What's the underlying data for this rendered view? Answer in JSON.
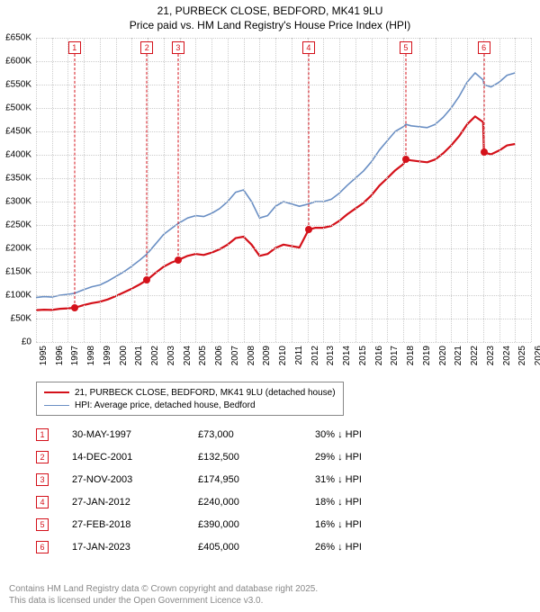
{
  "title": {
    "line1": "21, PURBECK CLOSE, BEDFORD, MK41 9LU",
    "line2": "Price paid vs. HM Land Registry's House Price Index (HPI)"
  },
  "chart": {
    "type": "line",
    "background_color": "#ffffff",
    "grid_color": "#cccccc",
    "axis_color": "#666666",
    "xlim": [
      1995,
      2026
    ],
    "ylim": [
      0,
      650000
    ],
    "ytick_step": 50000,
    "yticks_labels": [
      "£0",
      "£50K",
      "£100K",
      "£150K",
      "£200K",
      "£250K",
      "£300K",
      "£350K",
      "£400K",
      "£450K",
      "£500K",
      "£550K",
      "£600K",
      "£650K"
    ],
    "xticks": [
      1995,
      1996,
      1997,
      1998,
      1999,
      2000,
      2001,
      2002,
      2003,
      2004,
      2005,
      2006,
      2007,
      2008,
      2009,
      2010,
      2011,
      2012,
      2013,
      2014,
      2015,
      2016,
      2017,
      2018,
      2019,
      2020,
      2021,
      2022,
      2023,
      2024,
      2025,
      2026
    ],
    "label_fontsize": 10,
    "series": [
      {
        "id": "hpi",
        "color": "#6a8fc4",
        "width": 1.6,
        "label": "HPI: Average price, detached house, Bedford",
        "points": [
          [
            1995.0,
            95000
          ],
          [
            1995.5,
            97000
          ],
          [
            1996.0,
            96000
          ],
          [
            1996.5,
            100000
          ],
          [
            1997.0,
            102000
          ],
          [
            1997.41,
            104000
          ],
          [
            1998.0,
            112000
          ],
          [
            1998.5,
            118000
          ],
          [
            1999.0,
            122000
          ],
          [
            1999.5,
            130000
          ],
          [
            2000.0,
            140000
          ],
          [
            2000.5,
            150000
          ],
          [
            2001.0,
            162000
          ],
          [
            2001.5,
            175000
          ],
          [
            2001.95,
            188000
          ],
          [
            2002.5,
            210000
          ],
          [
            2003.0,
            230000
          ],
          [
            2003.5,
            243000
          ],
          [
            2003.9,
            253000
          ],
          [
            2004.5,
            265000
          ],
          [
            2005.0,
            270000
          ],
          [
            2005.5,
            268000
          ],
          [
            2006.0,
            275000
          ],
          [
            2006.5,
            285000
          ],
          [
            2007.0,
            300000
          ],
          [
            2007.5,
            320000
          ],
          [
            2008.0,
            325000
          ],
          [
            2008.5,
            300000
          ],
          [
            2009.0,
            265000
          ],
          [
            2009.5,
            270000
          ],
          [
            2010.0,
            290000
          ],
          [
            2010.5,
            300000
          ],
          [
            2011.0,
            295000
          ],
          [
            2011.5,
            290000
          ],
          [
            2012.07,
            295000
          ],
          [
            2012.5,
            300000
          ],
          [
            2013.0,
            300000
          ],
          [
            2013.5,
            305000
          ],
          [
            2014.0,
            318000
          ],
          [
            2014.5,
            335000
          ],
          [
            2015.0,
            350000
          ],
          [
            2015.5,
            365000
          ],
          [
            2016.0,
            385000
          ],
          [
            2016.5,
            410000
          ],
          [
            2017.0,
            430000
          ],
          [
            2017.5,
            450000
          ],
          [
            2018.0,
            460000
          ],
          [
            2018.16,
            465000
          ],
          [
            2018.5,
            462000
          ],
          [
            2019.0,
            460000
          ],
          [
            2019.5,
            458000
          ],
          [
            2020.0,
            465000
          ],
          [
            2020.5,
            480000
          ],
          [
            2021.0,
            500000
          ],
          [
            2021.5,
            525000
          ],
          [
            2022.0,
            555000
          ],
          [
            2022.5,
            575000
          ],
          [
            2023.0,
            560000
          ],
          [
            2023.05,
            550000
          ],
          [
            2023.5,
            545000
          ],
          [
            2024.0,
            555000
          ],
          [
            2024.5,
            570000
          ],
          [
            2025.0,
            575000
          ]
        ]
      },
      {
        "id": "price_paid",
        "color": "#d4111a",
        "width": 2.2,
        "label": "21, PURBECK CLOSE, BEDFORD, MK41 9LU (detached house)",
        "points": [
          [
            1995.0,
            68000
          ],
          [
            1995.5,
            69000
          ],
          [
            1996.0,
            68500
          ],
          [
            1996.5,
            71000
          ],
          [
            1997.0,
            72000
          ],
          [
            1997.41,
            73000
          ],
          [
            1998.0,
            79000
          ],
          [
            1998.5,
            83000
          ],
          [
            1999.0,
            86000
          ],
          [
            1999.5,
            91000
          ],
          [
            2000.0,
            98000
          ],
          [
            2000.5,
            106000
          ],
          [
            2001.0,
            114000
          ],
          [
            2001.5,
            123000
          ],
          [
            2001.95,
            132500
          ],
          [
            2002.5,
            148000
          ],
          [
            2003.0,
            161000
          ],
          [
            2003.5,
            170000
          ],
          [
            2003.9,
            174950
          ],
          [
            2004.5,
            184000
          ],
          [
            2005.0,
            188000
          ],
          [
            2005.5,
            186000
          ],
          [
            2006.0,
            191000
          ],
          [
            2006.5,
            198000
          ],
          [
            2007.0,
            208000
          ],
          [
            2007.5,
            222000
          ],
          [
            2008.0,
            225000
          ],
          [
            2008.5,
            208000
          ],
          [
            2009.0,
            184000
          ],
          [
            2009.5,
            188000
          ],
          [
            2010.0,
            201000
          ],
          [
            2010.5,
            208000
          ],
          [
            2011.0,
            205000
          ],
          [
            2011.5,
            202000
          ],
          [
            2012.07,
            240000
          ],
          [
            2012.5,
            244000
          ],
          [
            2013.0,
            244000
          ],
          [
            2013.5,
            248000
          ],
          [
            2014.0,
            259000
          ],
          [
            2014.5,
            273000
          ],
          [
            2015.0,
            285000
          ],
          [
            2015.5,
            297000
          ],
          [
            2016.0,
            313000
          ],
          [
            2016.5,
            334000
          ],
          [
            2017.0,
            350000
          ],
          [
            2017.5,
            367000
          ],
          [
            2018.0,
            380000
          ],
          [
            2018.16,
            390000
          ],
          [
            2018.5,
            388000
          ],
          [
            2019.0,
            386000
          ],
          [
            2019.5,
            384000
          ],
          [
            2020.0,
            390000
          ],
          [
            2020.5,
            403000
          ],
          [
            2021.0,
            420000
          ],
          [
            2021.5,
            440000
          ],
          [
            2022.0,
            465000
          ],
          [
            2022.5,
            482000
          ],
          [
            2023.0,
            470000
          ],
          [
            2023.05,
            405000
          ],
          [
            2023.5,
            401000
          ],
          [
            2024.0,
            409000
          ],
          [
            2024.5,
            420000
          ],
          [
            2025.0,
            423000
          ]
        ]
      }
    ],
    "markers": {
      "color": "#d4111a",
      "box_top_offset": 4,
      "items": [
        {
          "n": "1",
          "x": 1997.41,
          "y": 73000
        },
        {
          "n": "2",
          "x": 2001.95,
          "y": 132500
        },
        {
          "n": "3",
          "x": 2003.9,
          "y": 174950
        },
        {
          "n": "4",
          "x": 2012.07,
          "y": 240000
        },
        {
          "n": "5",
          "x": 2018.16,
          "y": 390000
        },
        {
          "n": "6",
          "x": 2023.05,
          "y": 405000
        }
      ]
    }
  },
  "legend": {
    "items": [
      {
        "color": "#d4111a",
        "width": 2.2,
        "label": "21, PURBECK CLOSE, BEDFORD, MK41 9LU (detached house)"
      },
      {
        "color": "#6a8fc4",
        "width": 1.6,
        "label": "HPI: Average price, detached house, Bedford"
      }
    ]
  },
  "sales": {
    "box_color": "#d4111a",
    "arrow": "↓",
    "rows": [
      {
        "n": "1",
        "date": "30-MAY-1997",
        "price": "£73,000",
        "pct": "30%",
        "rel": "HPI"
      },
      {
        "n": "2",
        "date": "14-DEC-2001",
        "price": "£132,500",
        "pct": "29%",
        "rel": "HPI"
      },
      {
        "n": "3",
        "date": "27-NOV-2003",
        "price": "£174,950",
        "pct": "31%",
        "rel": "HPI"
      },
      {
        "n": "4",
        "date": "27-JAN-2012",
        "price": "£240,000",
        "pct": "18%",
        "rel": "HPI"
      },
      {
        "n": "5",
        "date": "27-FEB-2018",
        "price": "£390,000",
        "pct": "16%",
        "rel": "HPI"
      },
      {
        "n": "6",
        "date": "17-JAN-2023",
        "price": "£405,000",
        "pct": "26%",
        "rel": "HPI"
      }
    ]
  },
  "footer": {
    "line1": "Contains HM Land Registry data © Crown copyright and database right 2025.",
    "line2": "This data is licensed under the Open Government Licence v3.0."
  }
}
